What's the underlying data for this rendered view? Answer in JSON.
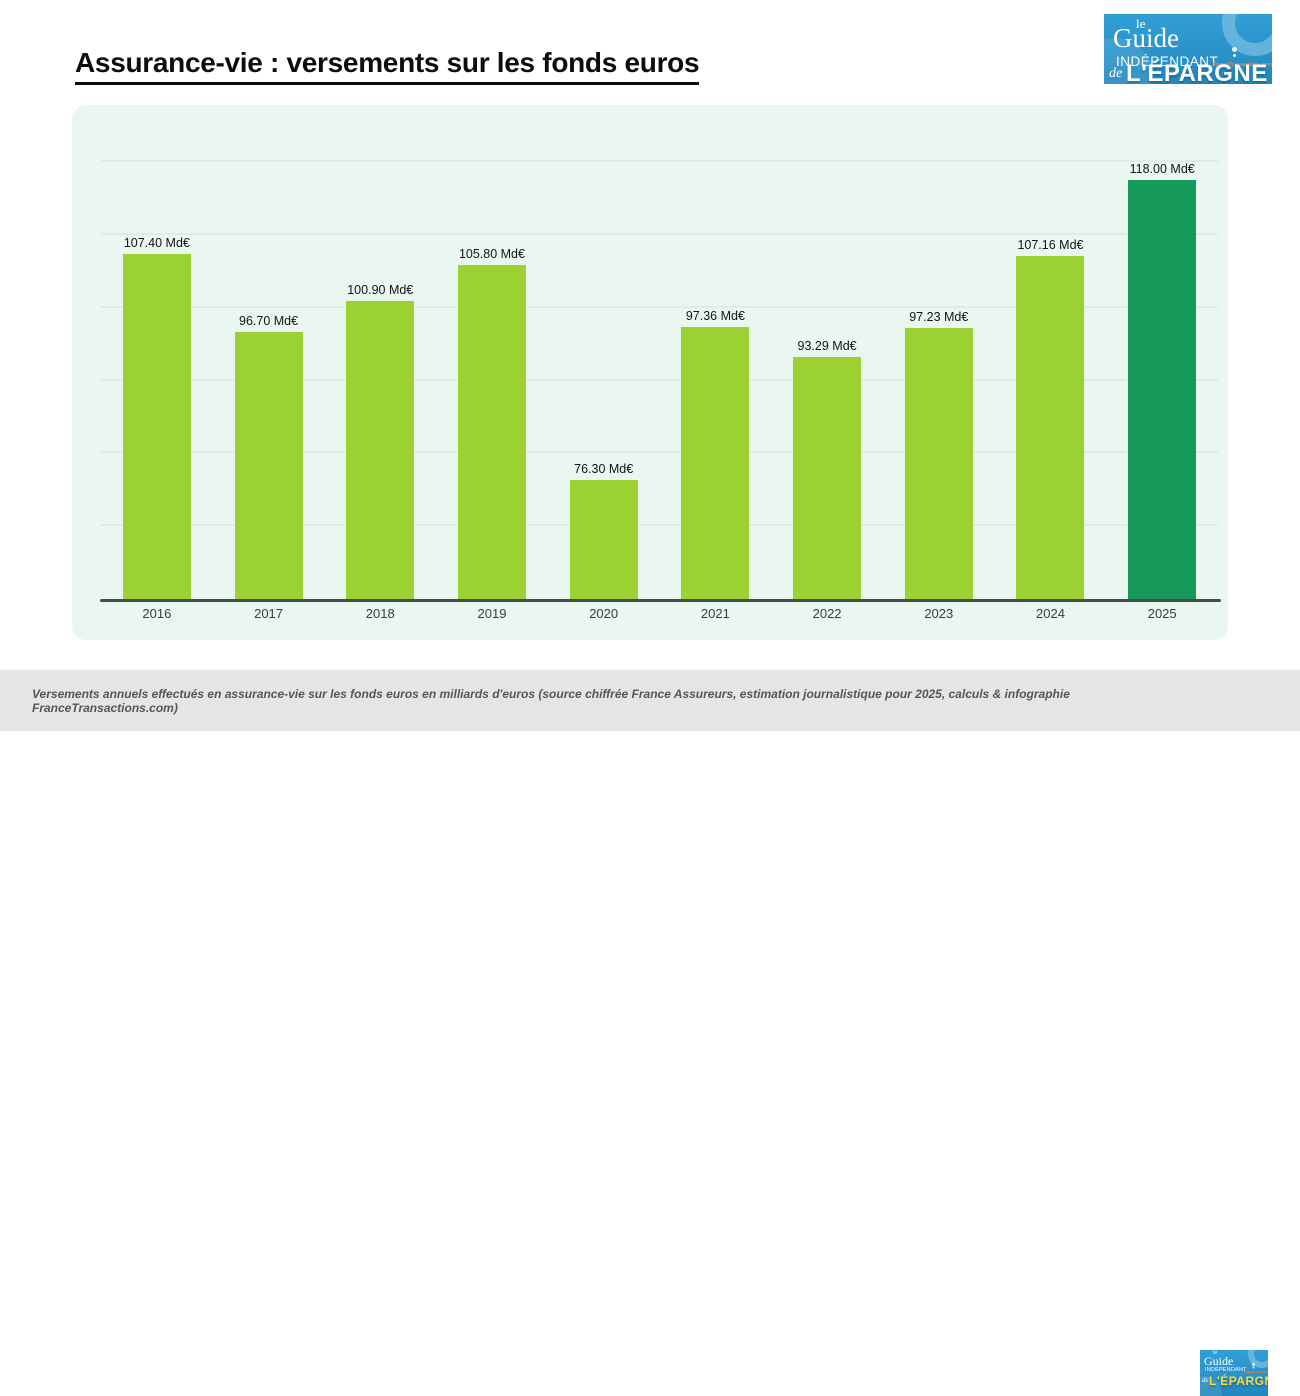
{
  "page": {
    "title": "Assurance-vie : versements sur les fonds euros"
  },
  "logo": {
    "le": "le",
    "guide": "Guide",
    "independant": "INDÉPENDANT",
    "francetransactions": "FranceTransactions.com",
    "de": "de",
    "epargne": "L'ÉPARGNE",
    "bg_color": "#2a93ca",
    "epargne_color_top": "#ffffff",
    "epargne_color_footer": "#ffd83a"
  },
  "chart_data": {
    "type": "bar",
    "title": "Assurance-vie : versements sur les fonds euros",
    "categories": [
      "2016",
      "2017",
      "2018",
      "2019",
      "2020",
      "2021",
      "2022",
      "2023",
      "2024",
      "2025"
    ],
    "values": [
      107.4,
      96.7,
      100.9,
      105.8,
      76.3,
      97.36,
      93.29,
      97.23,
      107.16,
      118.0
    ],
    "labels": [
      "107.40 Md€",
      "96.70 Md€",
      "100.90 Md€",
      "105.80 Md€",
      "76.30 Md€",
      "97.36 Md€",
      "93.29 Md€",
      "97.23 Md€",
      "107.16 Md€",
      "118.00 Md€"
    ],
    "unit": "Md€",
    "ylim": [
      60,
      120
    ],
    "gridline_step": 10,
    "y_ticks_visible": false,
    "grid": true,
    "legend": "none",
    "bar_color": "#9cd133",
    "highlight_color": "#16995a",
    "highlight_index": 9,
    "panel_bg": "#e9f7f0",
    "axis_color": "#4a4a4a"
  },
  "footer": {
    "caption": "Versements annuels effectués en assurance-vie sur les fonds euros en milliards d'euros (source chiffrée France Assureurs, estimation journalistique pour 2025, calculs & infographie FranceTransactions.com)"
  }
}
